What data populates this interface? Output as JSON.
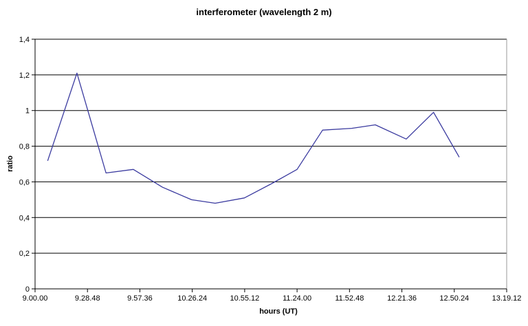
{
  "chart_data": {
    "type": "line",
    "title": "interferometer (wavelength 2 m)",
    "xlabel": "hours (UT)",
    "ylabel": "ratio",
    "x_tick_labels": [
      "9.00.00",
      "9.28.48",
      "9.57.36",
      "10.26.24",
      "10.55.12",
      "11.24.00",
      "11.52.48",
      "12.21.36",
      "12.50.24",
      "13.19.12"
    ],
    "y_tick_labels": [
      "0",
      "0,2",
      "0,4",
      "0,6",
      "0,8",
      "1",
      "1,2",
      "1,4"
    ],
    "ylim": [
      0,
      1.4
    ],
    "y_tick_step": 0.2,
    "x_axis_minutes_range": [
      0,
      259.2
    ],
    "x_tick_interval_minutes": 28.8,
    "grid": "horizontal",
    "legend": "none",
    "markers": "none",
    "colors": {
      "line": "#3a3a9f",
      "grid": "#000000",
      "axis": "#000000",
      "plot_border": "#999999",
      "text": "#000000",
      "background": "#ffffff"
    },
    "series": [
      {
        "name": "ratio",
        "points": [
          {
            "t_ut": "9.07",
            "minutes_after_9": 7,
            "ratio": 0.72
          },
          {
            "t_ut": "9.23",
            "minutes_after_9": 23,
            "ratio": 1.21
          },
          {
            "t_ut": "9.39",
            "minutes_after_9": 39,
            "ratio": 0.65
          },
          {
            "t_ut": "9.54",
            "minutes_after_9": 54,
            "ratio": 0.67
          },
          {
            "t_ut": "10.10",
            "minutes_after_9": 70,
            "ratio": 0.57
          },
          {
            "t_ut": "10.26",
            "minutes_after_9": 86,
            "ratio": 0.5
          },
          {
            "t_ut": "10.39",
            "minutes_after_9": 99,
            "ratio": 0.48
          },
          {
            "t_ut": "10.55",
            "minutes_after_9": 115,
            "ratio": 0.51
          },
          {
            "t_ut": "11.10",
            "minutes_after_9": 130,
            "ratio": 0.59
          },
          {
            "t_ut": "11.24",
            "minutes_after_9": 144,
            "ratio": 0.67
          },
          {
            "t_ut": "11.38",
            "minutes_after_9": 158,
            "ratio": 0.89
          },
          {
            "t_ut": "11.54",
            "minutes_after_9": 174,
            "ratio": 0.9
          },
          {
            "t_ut": "12.07",
            "minutes_after_9": 187,
            "ratio": 0.92
          },
          {
            "t_ut": "12.24",
            "minutes_after_9": 204,
            "ratio": 0.84
          },
          {
            "t_ut": "12.39",
            "minutes_after_9": 219,
            "ratio": 0.99
          },
          {
            "t_ut": "12.53",
            "minutes_after_9": 233,
            "ratio": 0.74
          }
        ]
      }
    ]
  }
}
